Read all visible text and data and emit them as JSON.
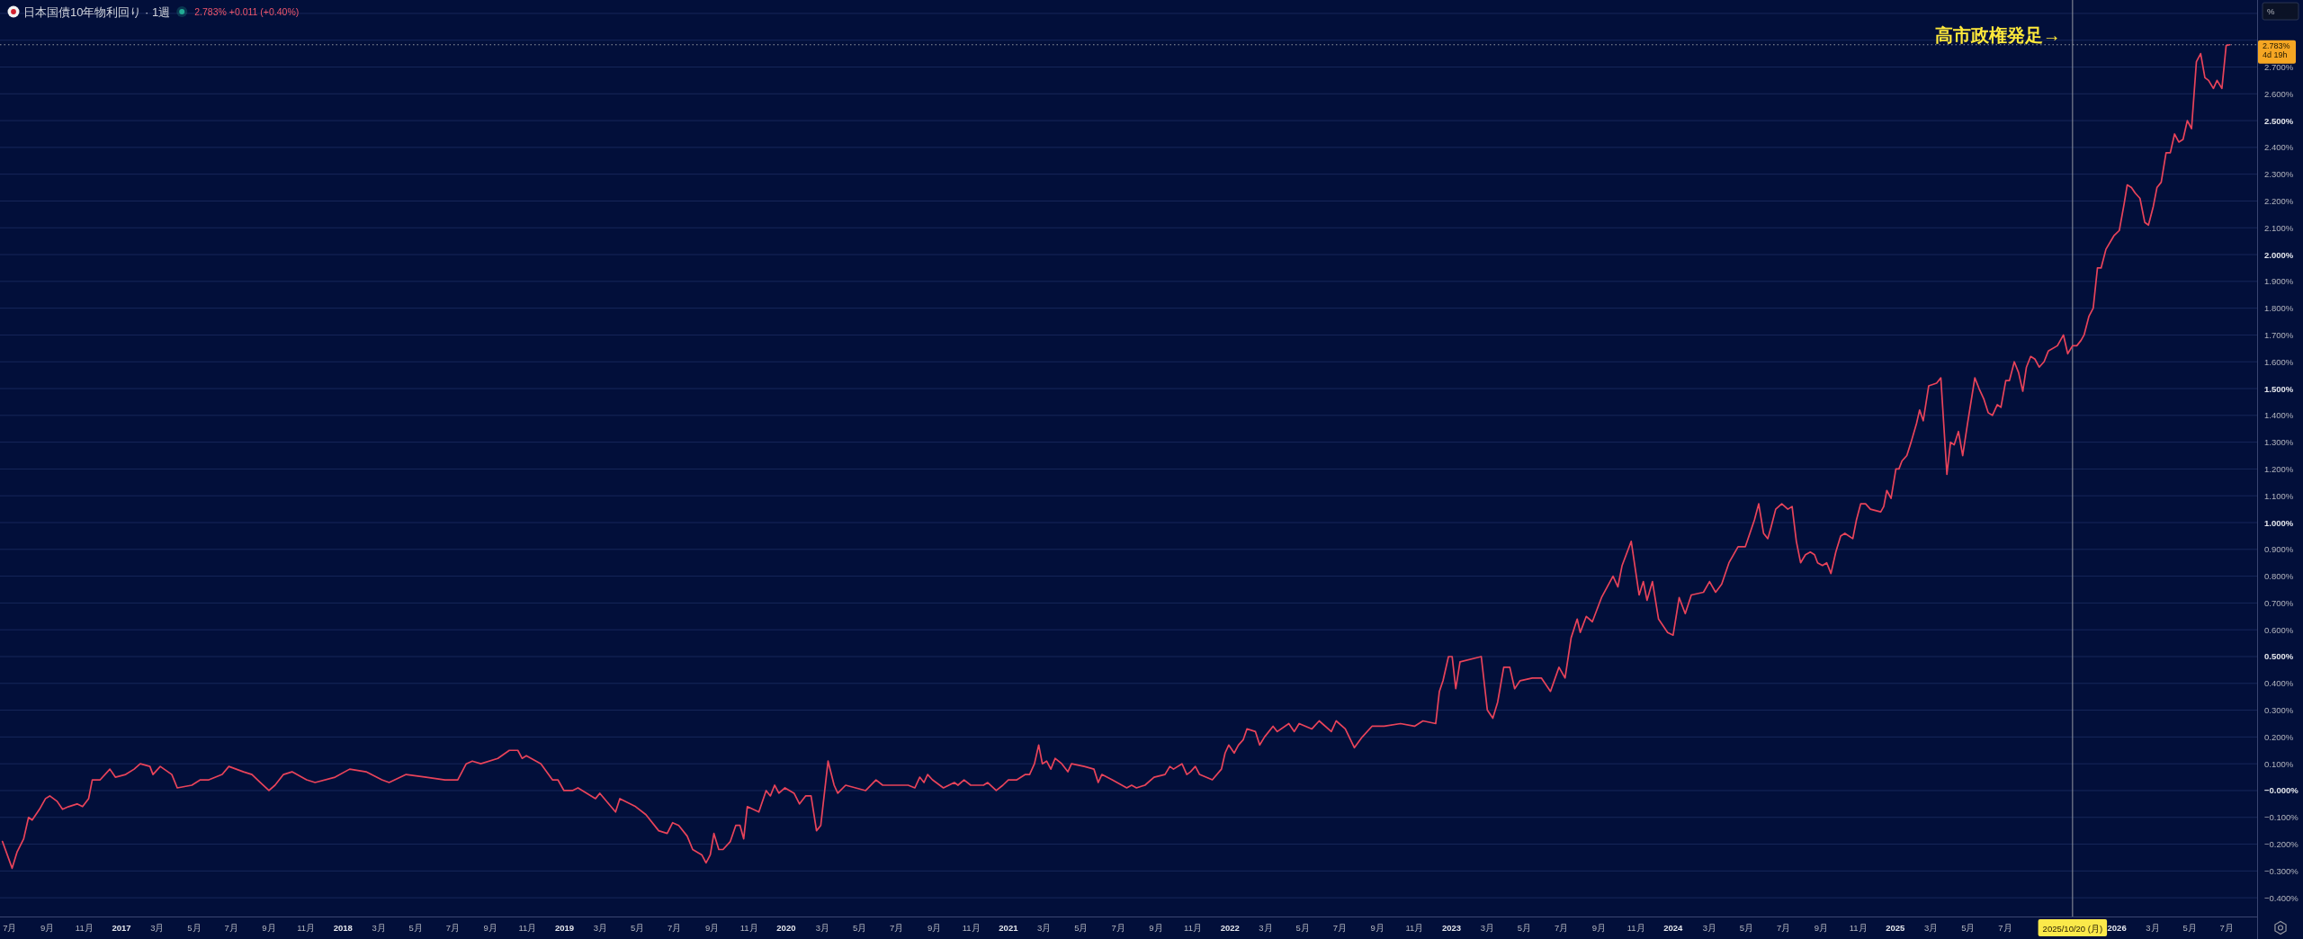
{
  "chart_data": {
    "type": "line",
    "title": "日本国債10年物利回り · 1週",
    "subtitle": "2.783% +0.011 (+0.40%)",
    "ylabel": "%",
    "x": [
      "2016-06-19",
      "2016-07-05",
      "2016-07-13",
      "2016-07-24",
      "2016-08-01",
      "2016-08-07",
      "2016-08-19",
      "2016-08-29",
      "2016-09-05",
      "2016-09-17",
      "2016-09-26",
      "2016-10-06",
      "2016-10-20",
      "2016-10-29",
      "2016-11-08",
      "2016-11-14",
      "2016-11-27",
      "2016-12-13",
      "2016-12-22",
      "2017-01-08",
      "2017-01-22",
      "2017-02-01",
      "2017-02-17",
      "2017-02-22",
      "2017-03-06",
      "2017-03-25",
      "2017-04-03",
      "2017-04-27",
      "2017-05-11",
      "2017-05-25",
      "2017-06-16",
      "2017-06-27",
      "2017-07-21",
      "2017-08-04",
      "2017-08-18",
      "2017-09-01",
      "2017-09-11",
      "2017-09-25",
      "2017-10-09",
      "2017-11-02",
      "2017-11-16",
      "2017-12-19",
      "2018-01-12",
      "2018-02-08",
      "2018-03-06",
      "2018-03-18",
      "2018-04-15",
      "2018-05-18",
      "2018-06-18",
      "2018-07-09",
      "2018-07-23",
      "2018-08-02",
      "2018-08-16",
      "2018-09-13",
      "2018-10-02",
      "2018-10-16",
      "2018-10-23",
      "2018-10-30",
      "2018-11-23",
      "2018-12-12",
      "2018-12-21",
      "2018-12-31",
      "2019-01-14",
      "2019-01-23",
      "2019-02-21",
      "2019-02-28",
      "2019-03-26",
      "2019-04-02",
      "2019-04-28",
      "2019-05-15",
      "2019-06-05",
      "2019-06-19",
      "2019-06-28",
      "2019-07-08",
      "2019-07-22",
      "2019-07-31",
      "2019-08-15",
      "2019-08-22",
      "2019-08-29",
      "2019-09-04",
      "2019-09-12",
      "2019-09-19",
      "2019-10-01",
      "2019-10-10",
      "2019-10-17",
      "2019-10-23",
      "2019-10-29",
      "2019-11-17",
      "2019-11-29",
      "2019-12-06",
      "2019-12-13",
      "2019-12-20",
      "2019-12-30",
      "2020-01-14",
      "2020-01-23",
      "2020-02-02",
      "2020-02-11",
      "2020-02-20",
      "2020-02-27",
      "2020-03-10",
      "2020-03-20",
      "2020-03-26",
      "2020-04-08",
      "2020-05-11",
      "2020-05-28",
      "2020-06-08",
      "2020-06-26",
      "2020-07-20",
      "2020-07-31",
      "2020-08-08",
      "2020-08-15",
      "2020-08-21",
      "2020-08-29",
      "2020-09-16",
      "2020-10-04",
      "2020-10-10",
      "2020-10-20",
      "2020-10-31",
      "2020-11-21",
      "2020-11-28",
      "2020-12-12",
      "2020-12-23",
      "2021-01-01",
      "2021-01-15",
      "2021-01-29",
      "2021-02-05",
      "2021-02-13",
      "2021-02-20",
      "2021-02-26",
      "2021-03-05",
      "2021-03-12",
      "2021-03-19",
      "2021-03-30",
      "2021-04-09",
      "2021-04-15",
      "2021-05-06",
      "2021-05-22",
      "2021-05-29",
      "2021-06-04",
      "2021-06-21",
      "2021-07-15",
      "2021-07-23",
      "2021-07-31",
      "2021-08-14",
      "2021-08-29",
      "2021-09-16",
      "2021-09-24",
      "2021-09-30",
      "2021-10-14",
      "2021-10-22",
      "2021-10-28",
      "2021-11-05",
      "2021-11-12",
      "2021-12-03",
      "2021-12-18",
      "2021-12-24",
      "2021-12-30",
      "2022-01-08",
      "2022-01-15",
      "2022-01-23",
      "2022-01-29",
      "2022-02-12",
      "2022-02-19",
      "2022-02-27",
      "2022-03-13",
      "2022-03-20",
      "2022-04-08",
      "2022-04-17",
      "2022-04-25",
      "2022-05-16",
      "2022-05-28",
      "2022-06-17",
      "2022-06-25",
      "2022-07-10",
      "2022-07-25",
      "2022-08-07",
      "2022-08-23",
      "2022-09-12",
      "2022-10-09",
      "2022-11-01",
      "2022-11-15",
      "2022-12-06",
      "2022-12-12",
      "2022-12-18",
      "2022-12-27",
      "2023-01-02",
      "2023-01-08",
      "2023-01-15",
      "2023-02-19",
      "2023-03-01",
      "2023-03-10",
      "2023-03-18",
      "2023-03-28",
      "2023-04-07",
      "2023-04-15",
      "2023-04-24",
      "2023-05-14",
      "2023-05-29",
      "2023-06-13",
      "2023-06-27",
      "2023-07-07",
      "2023-07-17",
      "2023-07-27",
      "2023-08-01",
      "2023-08-11",
      "2023-08-21",
      "2023-09-05",
      "2023-09-24",
      "2023-10-02",
      "2023-10-09",
      "2023-10-24",
      "2023-11-06",
      "2023-11-13",
      "2023-11-19",
      "2023-11-28",
      "2023-12-08",
      "2023-12-23",
      "2024-01-01",
      "2024-01-11",
      "2024-01-21",
      "2024-01-31",
      "2024-02-20",
      "2024-03-01",
      "2024-03-11",
      "2024-03-21",
      "2024-04-02",
      "2024-04-17",
      "2024-04-29",
      "2024-05-14",
      "2024-05-21",
      "2024-05-29",
      "2024-06-05",
      "2024-06-10",
      "2024-06-18",
      "2024-06-28",
      "2024-07-08",
      "2024-07-15",
      "2024-07-22",
      "2024-07-29",
      "2024-08-06",
      "2024-08-14",
      "2024-08-21",
      "2024-08-26",
      "2024-09-03",
      "2024-09-10",
      "2024-09-17",
      "2024-09-25",
      "2024-10-03",
      "2024-10-10",
      "2024-10-23",
      "2024-10-29",
      "2024-11-05",
      "2024-11-13",
      "2024-11-21",
      "2024-12-08",
      "2024-12-13",
      "2024-12-18",
      "2024-12-25",
      "2025-01-02",
      "2025-01-07",
      "2025-01-12",
      "2025-01-20",
      "2025-01-27",
      "2025-02-05",
      "2025-02-10",
      "2025-02-16",
      "2025-02-25",
      "2025-03-10",
      "2025-03-17",
      "2025-03-27",
      "2025-04-02",
      "2025-04-08",
      "2025-04-15",
      "2025-04-22",
      "2025-04-30",
      "2025-05-12",
      "2025-05-19",
      "2025-05-27",
      "2025-06-03",
      "2025-06-10",
      "2025-06-18",
      "2025-06-24",
      "2025-07-02",
      "2025-07-08",
      "2025-07-16",
      "2025-07-23",
      "2025-07-30",
      "2025-08-05",
      "2025-08-12",
      "2025-08-19",
      "2025-08-26",
      "2025-09-03",
      "2025-09-10",
      "2025-09-25",
      "2025-10-05",
      "2025-10-12",
      "2025-10-20",
      "2025-10-27",
      "2025-11-03",
      "2025-11-08",
      "2025-11-16",
      "2025-11-23",
      "2025-11-30",
      "2025-12-06",
      "2025-12-14",
      "2025-12-27",
      "2026-01-05",
      "2026-01-13",
      "2026-01-18",
      "2026-01-25",
      "2026-01-31",
      "2026-02-08",
      "2026-02-16",
      "2026-02-22",
      "2026-03-02",
      "2026-03-08",
      "2026-03-15",
      "2026-03-23",
      "2026-03-30",
      "2026-04-06",
      "2026-04-13",
      "2026-04-20",
      "2026-04-27",
      "2026-05-04",
      "2026-05-12",
      "2026-05-19",
      "2026-05-26",
      "2026-06-01",
      "2026-06-09",
      "2026-06-15",
      "2026-06-23",
      "2026-06-30",
      "2026-07-06"
    ],
    "series": [
      {
        "color": "#e8435a",
        "values": [
          -0.19,
          -0.29,
          -0.23,
          -0.18,
          -0.1,
          -0.11,
          -0.07,
          -0.03,
          -0.02,
          -0.04,
          -0.07,
          -0.06,
          -0.05,
          -0.06,
          -0.03,
          0.04,
          0.04,
          0.08,
          0.05,
          0.06,
          0.08,
          0.1,
          0.09,
          0.06,
          0.09,
          0.06,
          0.01,
          0.02,
          0.04,
          0.04,
          0.06,
          0.09,
          0.07,
          0.06,
          0.03,
          0.0,
          0.02,
          0.06,
          0.07,
          0.04,
          0.03,
          0.05,
          0.08,
          0.07,
          0.04,
          0.03,
          0.06,
          0.05,
          0.04,
          0.04,
          0.1,
          0.11,
          0.1,
          0.12,
          0.15,
          0.15,
          0.12,
          0.13,
          0.1,
          0.04,
          0.04,
          0.0,
          0.0,
          0.01,
          -0.03,
          -0.01,
          -0.08,
          -0.03,
          -0.06,
          -0.09,
          -0.15,
          -0.16,
          -0.12,
          -0.13,
          -0.17,
          -0.22,
          -0.24,
          -0.27,
          -0.24,
          -0.16,
          -0.22,
          -0.22,
          -0.19,
          -0.13,
          -0.13,
          -0.18,
          -0.06,
          -0.08,
          0.0,
          -0.02,
          0.02,
          -0.01,
          0.01,
          -0.01,
          -0.05,
          -0.02,
          -0.02,
          -0.15,
          -0.13,
          0.11,
          0.02,
          -0.01,
          0.02,
          0.0,
          0.04,
          0.02,
          0.02,
          0.02,
          0.01,
          0.05,
          0.03,
          0.06,
          0.04,
          0.01,
          0.03,
          0.02,
          0.04,
          0.02,
          0.02,
          0.03,
          0.0,
          0.02,
          0.04,
          0.04,
          0.06,
          0.06,
          0.1,
          0.17,
          0.1,
          0.11,
          0.08,
          0.12,
          0.1,
          0.07,
          0.1,
          0.09,
          0.08,
          0.03,
          0.06,
          0.04,
          0.01,
          0.02,
          0.01,
          0.02,
          0.05,
          0.06,
          0.09,
          0.08,
          0.1,
          0.06,
          0.07,
          0.09,
          0.06,
          0.04,
          0.08,
          0.14,
          0.17,
          0.14,
          0.17,
          0.19,
          0.23,
          0.22,
          0.17,
          0.2,
          0.24,
          0.22,
          0.25,
          0.22,
          0.25,
          0.23,
          0.26,
          0.22,
          0.26,
          0.23,
          0.16,
          0.2,
          0.24,
          0.24,
          0.25,
          0.24,
          0.26,
          0.25,
          0.37,
          0.41,
          0.5,
          0.5,
          0.38,
          0.48,
          0.5,
          0.3,
          0.27,
          0.33,
          0.46,
          0.46,
          0.38,
          0.41,
          0.42,
          0.42,
          0.37,
          0.46,
          0.42,
          0.57,
          0.64,
          0.59,
          0.65,
          0.63,
          0.72,
          0.8,
          0.76,
          0.84,
          0.93,
          0.73,
          0.78,
          0.71,
          0.78,
          0.64,
          0.59,
          0.58,
          0.72,
          0.66,
          0.73,
          0.74,
          0.78,
          0.74,
          0.77,
          0.85,
          0.91,
          0.91,
          1.01,
          1.07,
          0.96,
          0.94,
          0.98,
          1.05,
          1.07,
          1.05,
          1.06,
          0.93,
          0.85,
          0.88,
          0.89,
          0.88,
          0.85,
          0.84,
          0.85,
          0.81,
          0.89,
          0.95,
          0.96,
          0.94,
          1.01,
          1.07,
          1.07,
          1.05,
          1.04,
          1.06,
          1.12,
          1.09,
          1.2,
          1.2,
          1.23,
          1.25,
          1.3,
          1.37,
          1.42,
          1.38,
          1.51,
          1.52,
          1.54,
          1.18,
          1.3,
          1.29,
          1.34,
          1.25,
          1.37,
          1.54,
          1.5,
          1.46,
          1.41,
          1.4,
          1.44,
          1.43,
          1.53,
          1.53,
          1.6,
          1.56,
          1.49,
          1.58,
          1.62,
          1.61,
          1.58,
          1.6,
          1.64,
          1.66,
          1.7,
          1.63,
          1.66,
          1.66,
          1.68,
          1.7,
          1.77,
          1.8,
          1.95,
          1.95,
          2.02,
          2.07,
          2.09,
          2.19,
          2.26,
          2.25,
          2.23,
          2.21,
          2.12,
          2.11,
          2.18,
          2.25,
          2.27,
          2.38,
          2.38,
          2.45,
          2.42,
          2.43,
          2.5,
          2.47,
          2.72,
          2.75,
          2.66,
          2.65,
          2.62,
          2.65,
          2.62,
          2.78,
          2.783
        ]
      }
    ],
    "xlim": [
      "2016-06-15",
      "2026-08-20"
    ],
    "xticks": [
      {
        "value": "2016-07-01",
        "label": "7月"
      },
      {
        "value": "2016-09-01",
        "label": "9月"
      },
      {
        "value": "2016-11-01",
        "label": "11月"
      },
      {
        "value": "2017-01-01",
        "label": "2017"
      },
      {
        "value": "2017-03-01",
        "label": "3月"
      },
      {
        "value": "2017-05-01",
        "label": "5月"
      },
      {
        "value": "2017-07-01",
        "label": "7月"
      },
      {
        "value": "2017-09-01",
        "label": "9月"
      },
      {
        "value": "2017-11-01",
        "label": "11月"
      },
      {
        "value": "2018-01-01",
        "label": "2018"
      },
      {
        "value": "2018-03-01",
        "label": "3月"
      },
      {
        "value": "2018-05-01",
        "label": "5月"
      },
      {
        "value": "2018-07-01",
        "label": "7月"
      },
      {
        "value": "2018-09-01",
        "label": "9月"
      },
      {
        "value": "2018-11-01",
        "label": "11月"
      },
      {
        "value": "2019-01-01",
        "label": "2019"
      },
      {
        "value": "2019-03-01",
        "label": "3月"
      },
      {
        "value": "2019-05-01",
        "label": "5月"
      },
      {
        "value": "2019-07-01",
        "label": "7月"
      },
      {
        "value": "2019-09-01",
        "label": "9月"
      },
      {
        "value": "2019-11-01",
        "label": "11月"
      },
      {
        "value": "2020-01-01",
        "label": "2020"
      },
      {
        "value": "2020-03-01",
        "label": "3月"
      },
      {
        "value": "2020-05-01",
        "label": "5月"
      },
      {
        "value": "2020-07-01",
        "label": "7月"
      },
      {
        "value": "2020-09-01",
        "label": "9月"
      },
      {
        "value": "2020-11-01",
        "label": "11月"
      },
      {
        "value": "2021-01-01",
        "label": "2021"
      },
      {
        "value": "2021-03-01",
        "label": "3月"
      },
      {
        "value": "2021-05-01",
        "label": "5月"
      },
      {
        "value": "2021-07-01",
        "label": "7月"
      },
      {
        "value": "2021-09-01",
        "label": "9月"
      },
      {
        "value": "2021-11-01",
        "label": "11月"
      },
      {
        "value": "2022-01-01",
        "label": "2022"
      },
      {
        "value": "2022-03-01",
        "label": "3月"
      },
      {
        "value": "2022-05-01",
        "label": "5月"
      },
      {
        "value": "2022-07-01",
        "label": "7月"
      },
      {
        "value": "2022-09-01",
        "label": "9月"
      },
      {
        "value": "2022-11-01",
        "label": "11月"
      },
      {
        "value": "2023-01-01",
        "label": "2023"
      },
      {
        "value": "2023-03-01",
        "label": "3月"
      },
      {
        "value": "2023-05-01",
        "label": "5月"
      },
      {
        "value": "2023-07-01",
        "label": "7月"
      },
      {
        "value": "2023-09-01",
        "label": "9月"
      },
      {
        "value": "2023-11-01",
        "label": "11月"
      },
      {
        "value": "2024-01-01",
        "label": "2024"
      },
      {
        "value": "2024-03-01",
        "label": "3月"
      },
      {
        "value": "2024-05-01",
        "label": "5月"
      },
      {
        "value": "2024-07-01",
        "label": "7月"
      },
      {
        "value": "2024-09-01",
        "label": "9月"
      },
      {
        "value": "2024-11-01",
        "label": "11月"
      },
      {
        "value": "2025-01-01",
        "label": "2025"
      },
      {
        "value": "2025-03-01",
        "label": "3月"
      },
      {
        "value": "2025-05-01",
        "label": "5月"
      },
      {
        "value": "2025-07-01",
        "label": "7月"
      },
      {
        "value": "2026-01-01",
        "label": "2026"
      },
      {
        "value": "2026-03-01",
        "label": "3月"
      },
      {
        "value": "2026-05-01",
        "label": "5月"
      },
      {
        "value": "2026-07-01",
        "label": "7月"
      }
    ],
    "ylim": [
      -0.47,
      2.95
    ],
    "yticks": [
      {
        "value": -0.4,
        "label": "−0.400%"
      },
      {
        "value": -0.3,
        "label": "−0.300%"
      },
      {
        "value": -0.2,
        "label": "−0.200%"
      },
      {
        "value": -0.1,
        "label": "−0.100%"
      },
      {
        "value": 0,
        "label": "−0.000%"
      },
      {
        "value": 0.1,
        "label": "0.100%"
      },
      {
        "value": 0.2,
        "label": "0.200%"
      },
      {
        "value": 0.3,
        "label": "0.300%"
      },
      {
        "value": 0.4,
        "label": "0.400%"
      },
      {
        "value": 0.5,
        "label": "0.500%"
      },
      {
        "value": 0.6,
        "label": "0.600%"
      },
      {
        "value": 0.7,
        "label": "0.700%"
      },
      {
        "value": 0.8,
        "label": "0.800%"
      },
      {
        "value": 0.9,
        "label": "0.900%"
      },
      {
        "value": 1.0,
        "label": "1.000%"
      },
      {
        "value": 1.1,
        "label": "1.100%"
      },
      {
        "value": 1.2,
        "label": "1.200%"
      },
      {
        "value": 1.3,
        "label": "1.300%"
      },
      {
        "value": 1.4,
        "label": "1.400%"
      },
      {
        "value": 1.5,
        "label": "1.500%"
      },
      {
        "value": 1.6,
        "label": "1.600%"
      },
      {
        "value": 1.7,
        "label": "1.700%"
      },
      {
        "value": 1.8,
        "label": "1.800%"
      },
      {
        "value": 1.9,
        "label": "1.900%"
      },
      {
        "value": 2.0,
        "label": "2.000%"
      },
      {
        "value": 2.1,
        "label": "2.100%"
      },
      {
        "value": 2.2,
        "label": "2.200%"
      },
      {
        "value": 2.3,
        "label": "2.300%"
      },
      {
        "value": 2.4,
        "label": "2.400%"
      },
      {
        "value": 2.5,
        "label": "2.500%"
      },
      {
        "value": 2.6,
        "label": "2.600%"
      },
      {
        "value": 2.7,
        "label": "2.700%"
      },
      {
        "value": 2.8,
        "label": null
      },
      {
        "value": 2.9,
        "label": null
      }
    ],
    "grid": "y",
    "ref_lines": [
      {
        "axis": "y",
        "value": 2.783,
        "label": "2.783%",
        "line_style": "dotted",
        "color": "#9598a1"
      },
      {
        "axis": "x",
        "value": "2025-10-20",
        "label": "2025/10/20 (月)",
        "color": "#9598a1"
      }
    ],
    "annotations": [
      "4d 19h",
      {
        "text": "高市政権発足→",
        "x": "2025-10-20",
        "y": 2.82
      }
    ]
  }
}
